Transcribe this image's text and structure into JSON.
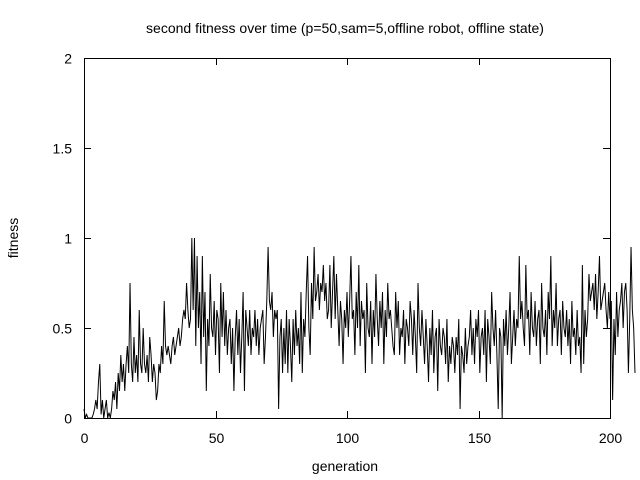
{
  "chart_data": {
    "type": "line",
    "title": "second fitness over time (p=50,sam=5,offline robot, offline state)",
    "xlabel": "generation",
    "ylabel": "fitness",
    "xlim": [
      0,
      200
    ],
    "ylim": [
      0,
      2
    ],
    "x_ticks": [
      0,
      50,
      100,
      150,
      200
    ],
    "x_tick_labels": [
      "0",
      "50",
      "100",
      "150",
      "200"
    ],
    "y_ticks": [
      0,
      0.5,
      1,
      1.5,
      2
    ],
    "y_tick_labels": [
      "0",
      "0.5",
      "1",
      "1.5",
      "2"
    ],
    "grid": false,
    "line_color": "#000000",
    "series": [
      {
        "name": "second fitness",
        "x_step": 0.5,
        "values": [
          0.05,
          0.0,
          0.02,
          0.0,
          0.0,
          0.0,
          0.0,
          0.02,
          0.05,
          0.1,
          0.05,
          0.2,
          0.3,
          0.02,
          0.1,
          0.0,
          0.05,
          0.1,
          0.0,
          0.03,
          0.0,
          0.05,
          0.15,
          0.1,
          0.2,
          0.05,
          0.25,
          0.15,
          0.35,
          0.2,
          0.3,
          0.15,
          0.3,
          0.4,
          0.25,
          0.75,
          0.3,
          0.2,
          0.45,
          0.25,
          0.35,
          0.2,
          0.6,
          0.3,
          0.25,
          0.5,
          0.3,
          0.25,
          0.35,
          0.2,
          0.45,
          0.35,
          0.2,
          0.3,
          0.25,
          0.1,
          0.15,
          0.3,
          0.25,
          0.4,
          0.3,
          0.65,
          0.4,
          0.35,
          0.4,
          0.35,
          0.3,
          0.4,
          0.45,
          0.35,
          0.4,
          0.45,
          0.5,
          0.4,
          0.45,
          0.55,
          0.6,
          0.55,
          0.75,
          0.6,
          0.5,
          0.55,
          1.0,
          0.6,
          1.0,
          0.4,
          0.9,
          0.5,
          0.7,
          0.3,
          0.9,
          0.45,
          0.7,
          0.15,
          0.55,
          0.4,
          0.8,
          0.5,
          0.45,
          0.65,
          0.35,
          0.6,
          0.55,
          0.25,
          0.75,
          0.45,
          0.7,
          0.4,
          0.6,
          0.35,
          0.5,
          0.55,
          0.3,
          0.5,
          0.15,
          0.45,
          0.6,
          0.35,
          0.55,
          0.25,
          0.45,
          0.7,
          0.15,
          0.6,
          0.5,
          0.4,
          0.6,
          0.35,
          0.5,
          0.45,
          0.6,
          0.4,
          0.55,
          0.35,
          0.5,
          0.55,
          0.6,
          0.3,
          0.45,
          0.65,
          0.95,
          0.65,
          0.6,
          0.7,
          0.45,
          0.6,
          0.55,
          0.6,
          0.05,
          0.45,
          0.55,
          0.25,
          0.5,
          0.3,
          0.6,
          0.25,
          0.55,
          0.4,
          0.2,
          0.55,
          0.35,
          0.6,
          0.4,
          0.5,
          0.3,
          0.7,
          0.25,
          0.55,
          0.45,
          0.7,
          0.9,
          0.5,
          0.35,
          0.75,
          0.55,
          0.95,
          0.65,
          0.7,
          0.8,
          0.6,
          0.75,
          0.7,
          0.85,
          0.65,
          0.75,
          0.55,
          0.6,
          0.85,
          0.5,
          0.7,
          0.9,
          0.55,
          0.8,
          0.6,
          0.4,
          0.65,
          0.55,
          0.3,
          0.6,
          0.5,
          0.7,
          0.45,
          0.65,
          0.9,
          0.55,
          0.6,
          0.35,
          0.7,
          0.5,
          0.85,
          0.4,
          0.65,
          0.55,
          0.6,
          0.25,
          0.75,
          0.5,
          0.45,
          0.65,
          0.3,
          0.6,
          0.45,
          0.8,
          0.55,
          0.4,
          0.65,
          0.5,
          0.7,
          0.3,
          0.6,
          0.45,
          0.75,
          0.55,
          0.6,
          0.5,
          0.4,
          0.35,
          0.7,
          0.5,
          0.65,
          0.35,
          0.5,
          0.45,
          0.6,
          0.3,
          0.55,
          0.5,
          0.4,
          0.65,
          0.55,
          0.35,
          0.6,
          0.45,
          0.25,
          0.75,
          0.5,
          0.4,
          0.6,
          0.45,
          0.3,
          0.55,
          0.4,
          0.2,
          0.5,
          0.35,
          0.6,
          0.25,
          0.45,
          0.5,
          0.15,
          0.55,
          0.4,
          0.35,
          0.5,
          0.45,
          0.3,
          0.55,
          0.2,
          0.4,
          0.3,
          0.45,
          0.4,
          0.25,
          0.45,
          0.35,
          0.55,
          0.05,
          0.4,
          0.35,
          0.25,
          0.5,
          0.3,
          0.4,
          0.45,
          0.6,
          0.35,
          0.5,
          0.3,
          0.55,
          0.45,
          0.6,
          0.25,
          0.45,
          0.5,
          0.35,
          0.6,
          0.2,
          0.55,
          0.45,
          0.3,
          0.7,
          0.5,
          0.4,
          0.6,
          0.35,
          0.05,
          0.5,
          0.45,
          0.0,
          0.55,
          0.4,
          0.6,
          0.35,
          0.5,
          0.7,
          0.3,
          0.45,
          0.6,
          0.4,
          0.55,
          0.5,
          0.9,
          0.55,
          0.65,
          0.5,
          0.4,
          0.85,
          0.55,
          0.6,
          0.35,
          0.7,
          0.5,
          0.45,
          0.65,
          0.4,
          0.55,
          0.6,
          0.3,
          0.75,
          0.5,
          0.45,
          0.6,
          0.35,
          0.7,
          0.55,
          0.9,
          0.4,
          0.6,
          0.5,
          0.75,
          0.4,
          0.55,
          0.6,
          0.35,
          0.65,
          0.5,
          0.45,
          0.6,
          0.4,
          0.55,
          0.3,
          0.65,
          0.45,
          0.5,
          0.35,
          0.6,
          0.4,
          0.45,
          0.25,
          0.85,
          0.3,
          0.6,
          0.45,
          0.55,
          0.8,
          0.65,
          0.7,
          0.75,
          0.6,
          0.8,
          0.55,
          0.7,
          0.9,
          0.6,
          0.65,
          0.7,
          0.75,
          0.6,
          0.5,
          0.7,
          0.55,
          0.65,
          0.1,
          0.55,
          0.35,
          0.7,
          0.45,
          0.6,
          0.65,
          0.75,
          0.5,
          0.7,
          0.75,
          0.6,
          0.25,
          0.55,
          0.95,
          0.6,
          0.5,
          0.25
        ]
      }
    ]
  }
}
